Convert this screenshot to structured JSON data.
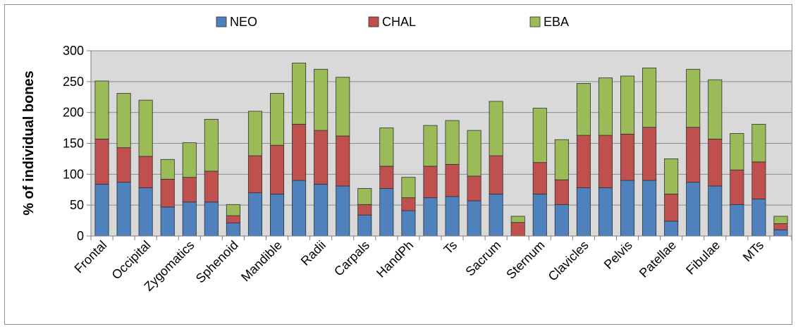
{
  "chart_data": {
    "type": "bar",
    "stacked": true,
    "ylabel": "% of individual bones",
    "ylim": [
      0,
      300
    ],
    "yticks": [
      0,
      50,
      100,
      150,
      200,
      250,
      300
    ],
    "grid": true,
    "legend_position": "top",
    "x_tick_labels": [
      "Frontal",
      "Occipital",
      "Zygomatics",
      "Sphenoid",
      "Mandible",
      "Radii",
      "Carpals",
      "HandPh",
      "Ts",
      "Sacrum",
      "Sternum",
      "Clavicles",
      "Pelvis",
      "Patellae",
      "Fibulae",
      "MTs"
    ],
    "bar_count": 32,
    "series": [
      {
        "name": "NEO",
        "color": "#4f81bd",
        "values": [
          84,
          87,
          78,
          47,
          55,
          55,
          21,
          70,
          68,
          90,
          84,
          81,
          34,
          77,
          41,
          62,
          64,
          57,
          68,
          0,
          68,
          51,
          78,
          78,
          90,
          90,
          24,
          87,
          81,
          51,
          60,
          10
        ]
      },
      {
        "name": "CHAL",
        "color": "#c0504d",
        "values": [
          73,
          56,
          51,
          45,
          40,
          50,
          12,
          60,
          79,
          91,
          87,
          81,
          17,
          36,
          21,
          51,
          52,
          40,
          62,
          22,
          51,
          40,
          85,
          85,
          75,
          86,
          44,
          89,
          76,
          56,
          60,
          10
        ]
      },
      {
        "name": "EBA",
        "color": "#9bbb59",
        "values": [
          94,
          88,
          91,
          32,
          56,
          84,
          18,
          72,
          84,
          99,
          99,
          95,
          26,
          62,
          33,
          66,
          71,
          74,
          88,
          10,
          88,
          65,
          84,
          93,
          94,
          96,
          57,
          94,
          96,
          59,
          61,
          12
        ]
      }
    ]
  }
}
